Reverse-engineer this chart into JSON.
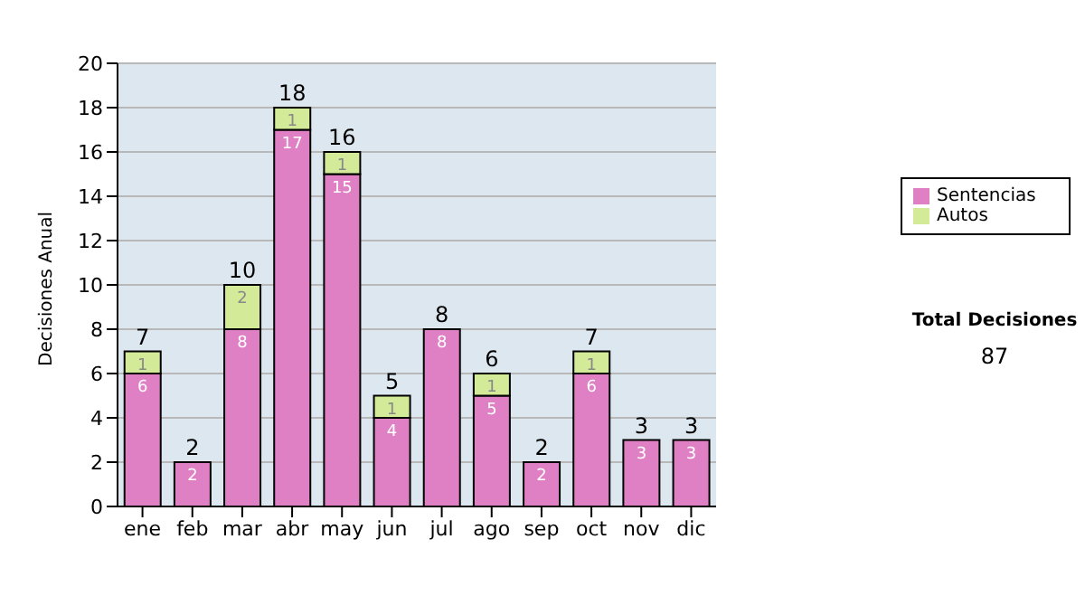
{
  "chart_data": {
    "type": "bar",
    "stacked": true,
    "ylabel": "Decisiones Anual",
    "categories": [
      "ene",
      "feb",
      "mar",
      "abr",
      "may",
      "jun",
      "jul",
      "ago",
      "sep",
      "oct",
      "nov",
      "dic"
    ],
    "series": [
      {
        "name": "Sentencias",
        "color": "#df7fc4",
        "values": [
          6,
          2,
          8,
          17,
          15,
          4,
          8,
          5,
          2,
          6,
          3,
          3
        ],
        "value_labels": [
          "6",
          "2",
          "8",
          "17",
          "15",
          "4",
          "8",
          "5",
          "2",
          "6",
          "3",
          "3"
        ]
      },
      {
        "name": "Autos",
        "color": "#d3eb98",
        "values": [
          1,
          0,
          2,
          1,
          1,
          1,
          0,
          1,
          0,
          1,
          0,
          0
        ],
        "value_labels": [
          "1",
          null,
          "2",
          "1",
          "1",
          "1",
          null,
          "1",
          null,
          "1",
          null,
          null
        ]
      }
    ],
    "totals": [
      "7",
      "2",
      "10",
      "18",
      "16",
      "5",
      "8",
      "6",
      "2",
      "7",
      "3",
      "3"
    ],
    "ylim": [
      0,
      20
    ],
    "yticks": [
      0,
      2,
      4,
      6,
      8,
      10,
      12,
      14,
      16,
      18,
      20
    ],
    "grid": "y",
    "legend": "right",
    "annotations": [
      "Total Decisiones",
      "87"
    ]
  }
}
